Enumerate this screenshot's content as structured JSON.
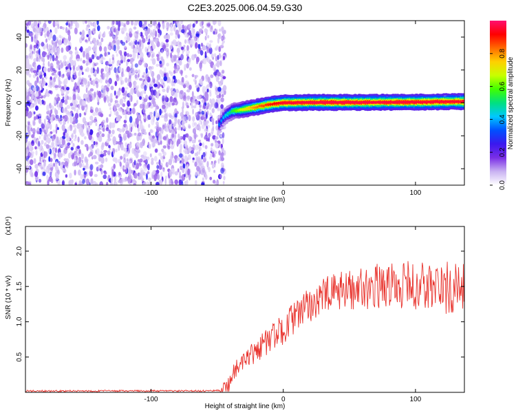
{
  "figure_title": "C2E3.2025.006.04.59.G30",
  "chart_data": [
    {
      "type": "heatmap",
      "xlabel": "Height of straight line (km)",
      "ylabel": "Frequency (Hz)",
      "xlim": [
        -195,
        137
      ],
      "ylim": [
        -50,
        50
      ],
      "xticks": [
        -100,
        0,
        100
      ],
      "yticks": [
        -40,
        -20,
        0,
        20,
        40
      ],
      "grid": false,
      "colorbar": {
        "label": "Normalized spectral amplitude",
        "range": [
          0,
          1
        ],
        "ticks": [
          "0.0",
          "0.2",
          "0.4",
          "0.6",
          "0.8"
        ],
        "colormap": "rainbow",
        "stops": [
          "#ffffff",
          "#c9b2f2",
          "#7a2fe6",
          "#3b18ee",
          "#0050ff",
          "#00c8ff",
          "#00e080",
          "#40ff00",
          "#c8ff00",
          "#ffd000",
          "#ff6a00",
          "#ff0000",
          "#ff1070"
        ]
      },
      "noise_region": {
        "x": [
          -195,
          -48
        ],
        "y": [
          -50,
          50
        ],
        "amplitude": [
          0.05,
          0.35
        ]
      },
      "signal_track": [
        {
          "x": -48,
          "y": -13,
          "amp": 0.35
        },
        {
          "x": -44,
          "y": -8,
          "amp": 0.42
        },
        {
          "x": -38,
          "y": -5,
          "amp": 0.55
        },
        {
          "x": -30,
          "y": -4,
          "amp": 0.7
        },
        {
          "x": -20,
          "y": -2.5,
          "amp": 0.82
        },
        {
          "x": -10,
          "y": -1,
          "amp": 0.9
        },
        {
          "x": 0,
          "y": 0,
          "amp": 0.95
        },
        {
          "x": 20,
          "y": 0.3,
          "amp": 0.97
        },
        {
          "x": 60,
          "y": 0.3,
          "amp": 0.97
        },
        {
          "x": 100,
          "y": 0.5,
          "amp": 0.96
        },
        {
          "x": 137,
          "y": 0.8,
          "amp": 0.95
        }
      ]
    },
    {
      "type": "line",
      "xlabel": "Height of straight line (km)",
      "ylabel": "SNR (10 * v/v)",
      "y_multiplier": "(x10⁴)",
      "xlim": [
        -195,
        137
      ],
      "ylim": [
        0,
        2.35
      ],
      "xticks": [
        -100,
        0,
        100
      ],
      "yticks": [
        "0.5",
        "1.0",
        "1.5",
        "2.0"
      ],
      "grid": false,
      "color": "#e8302a",
      "series": [
        {
          "x": [
            -195,
            -140,
            -100,
            -60,
            -48,
            -42,
            -38,
            -34,
            -30,
            -25,
            -20,
            -15,
            -10,
            -5,
            0,
            5,
            10,
            15,
            20,
            25,
            30,
            40,
            50,
            60,
            70,
            80,
            90,
            100,
            110,
            120,
            130,
            137
          ],
          "y": [
            0.02,
            0.02,
            0.02,
            0.02,
            0.03,
            0.08,
            0.28,
            0.35,
            0.4,
            0.5,
            0.6,
            0.68,
            0.75,
            0.82,
            0.9,
            1.0,
            1.08,
            1.16,
            1.24,
            1.3,
            1.36,
            1.42,
            1.46,
            1.48,
            1.5,
            1.52,
            1.52,
            1.5,
            1.5,
            1.48,
            1.45,
            1.45
          ]
        }
      ]
    }
  ]
}
